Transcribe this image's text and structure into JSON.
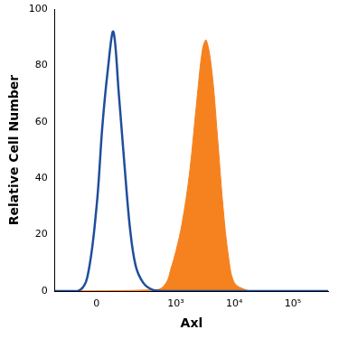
{
  "chart_data": {
    "type": "line",
    "x_label": "Axl",
    "y_label": "Relative Cell Number",
    "xlim": [
      -220,
      400000
    ],
    "xticks": [
      0,
      {
        "value": 1000,
        "label": "10³"
      },
      {
        "value": 10000,
        "label": "10⁴"
      },
      {
        "value": 100000,
        "label": "10⁵"
      }
    ],
    "ylim": [
      0,
      100
    ],
    "yticks": [
      0,
      20,
      40,
      60,
      80,
      100
    ],
    "grid": false,
    "series": [
      {
        "type": "line",
        "color": "#1f4e9c",
        "x": [
          -220,
          -71,
          -33,
          0,
          20,
          40,
          63,
          88,
          118,
          154,
          197,
          270,
          393,
          686,
          400000
        ],
        "values": [
          0,
          0,
          5,
          30,
          58,
          78,
          92,
          70,
          45,
          22,
          9,
          3,
          0.5,
          0,
          0
        ]
      },
      {
        "type": "area",
        "color": "#f5821f",
        "x": [
          -220,
          474,
          686,
          826,
          1000,
          1280,
          1720,
          2300,
          2870,
          3320,
          4140,
          5150,
          6410,
          7980,
          10000,
          15400,
          21900,
          400000
        ],
        "values": [
          0,
          0.5,
          3,
          8,
          14,
          24,
          42,
          68,
          86,
          89,
          78,
          55,
          30,
          12,
          3,
          0.5,
          0,
          0
        ]
      }
    ]
  }
}
